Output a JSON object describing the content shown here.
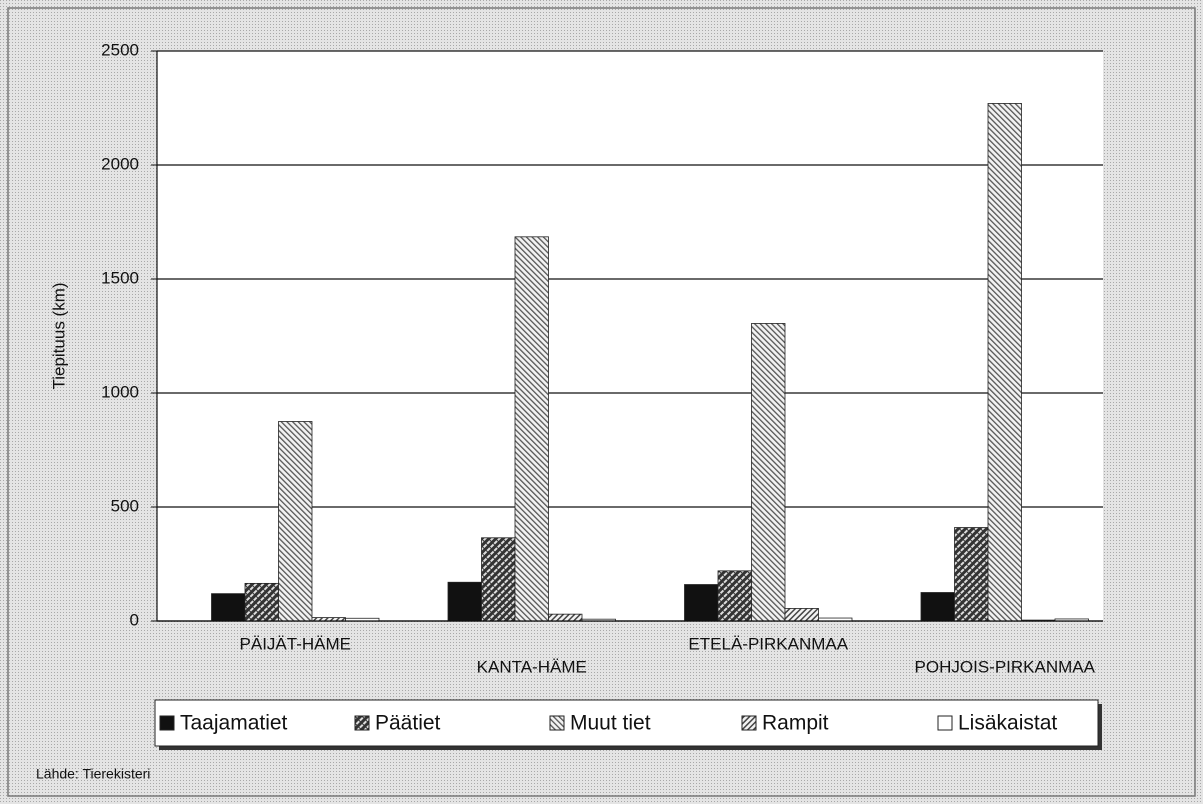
{
  "chart_data": {
    "type": "bar",
    "y_label": "Tiepituus (km)",
    "source": "Lähde: Tierekisteri",
    "categories": [
      "PÄIJÄT-HÄME",
      "KANTA-HÄME",
      "ETELÄ-PIRKANMAA",
      "POHJOIS-PIRKANMAA"
    ],
    "series": [
      {
        "name": "Taajamatiet",
        "color": "#111111",
        "pattern": "solid",
        "values": [
          120,
          170,
          160,
          125
        ]
      },
      {
        "name": "Päätiet",
        "color": "#333333",
        "pattern": "crosshatch",
        "values": [
          165,
          365,
          220,
          410
        ]
      },
      {
        "name": "Muut tiet",
        "color": "#777777",
        "pattern": "backslash",
        "values": [
          875,
          1685,
          1305,
          2270
        ]
      },
      {
        "name": "Rampit",
        "color": "#666666",
        "pattern": "slash",
        "values": [
          15,
          30,
          55,
          4
        ]
      },
      {
        "name": "Lisäkaistat",
        "color": "#ffffff",
        "pattern": "none",
        "values": [
          12,
          8,
          13,
          9
        ]
      }
    ],
    "ylim": [
      0,
      2500
    ],
    "yticks": [
      0,
      500,
      1000,
      1500,
      2000,
      2500
    ],
    "grid": true
  }
}
